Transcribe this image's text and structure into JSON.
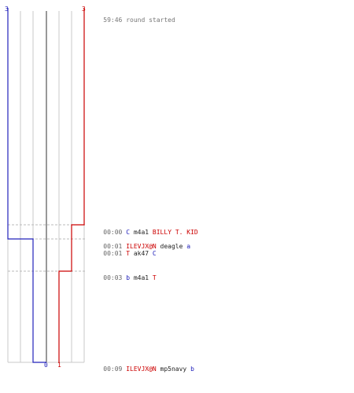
{
  "colors": {
    "blue": "#2222bb",
    "red": "#cc0000",
    "grid": "#c8c8c8",
    "center": "#777777",
    "dash": "#bbbbbb"
  },
  "scores": {
    "blue_start": "3",
    "red_start": "3",
    "blue_end": "0",
    "red_end": "1"
  },
  "header": {
    "time": "59:46",
    "text": "round started"
  },
  "events": [
    {
      "time": "00:00",
      "parts": [
        {
          "t": "C",
          "c": "blue"
        },
        {
          "t": " m4a1 ",
          "c": "black"
        },
        {
          "t": "BILLY T. KID",
          "c": "red"
        }
      ]
    },
    {
      "time": "00:01",
      "parts": [
        {
          "t": "ILEVJX@N",
          "c": "red"
        },
        {
          "t": " deagle ",
          "c": "black"
        },
        {
          "t": "a",
          "c": "blue"
        }
      ]
    },
    {
      "time": "00:01",
      "parts": [
        {
          "t": "T",
          "c": "red"
        },
        {
          "t": " ak47 ",
          "c": "black"
        },
        {
          "t": "C",
          "c": "blue"
        }
      ]
    },
    {
      "time": "00:03",
      "parts": [
        {
          "t": "b",
          "c": "blue"
        },
        {
          "t": " m4a1 ",
          "c": "black"
        },
        {
          "t": "T",
          "c": "red"
        }
      ]
    },
    {
      "time": "00:09",
      "parts": [
        {
          "t": "ILEVJX@N",
          "c": "red"
        },
        {
          "t": " mp5navy ",
          "c": "black"
        },
        {
          "t": "b",
          "c": "blue"
        }
      ]
    }
  ]
}
